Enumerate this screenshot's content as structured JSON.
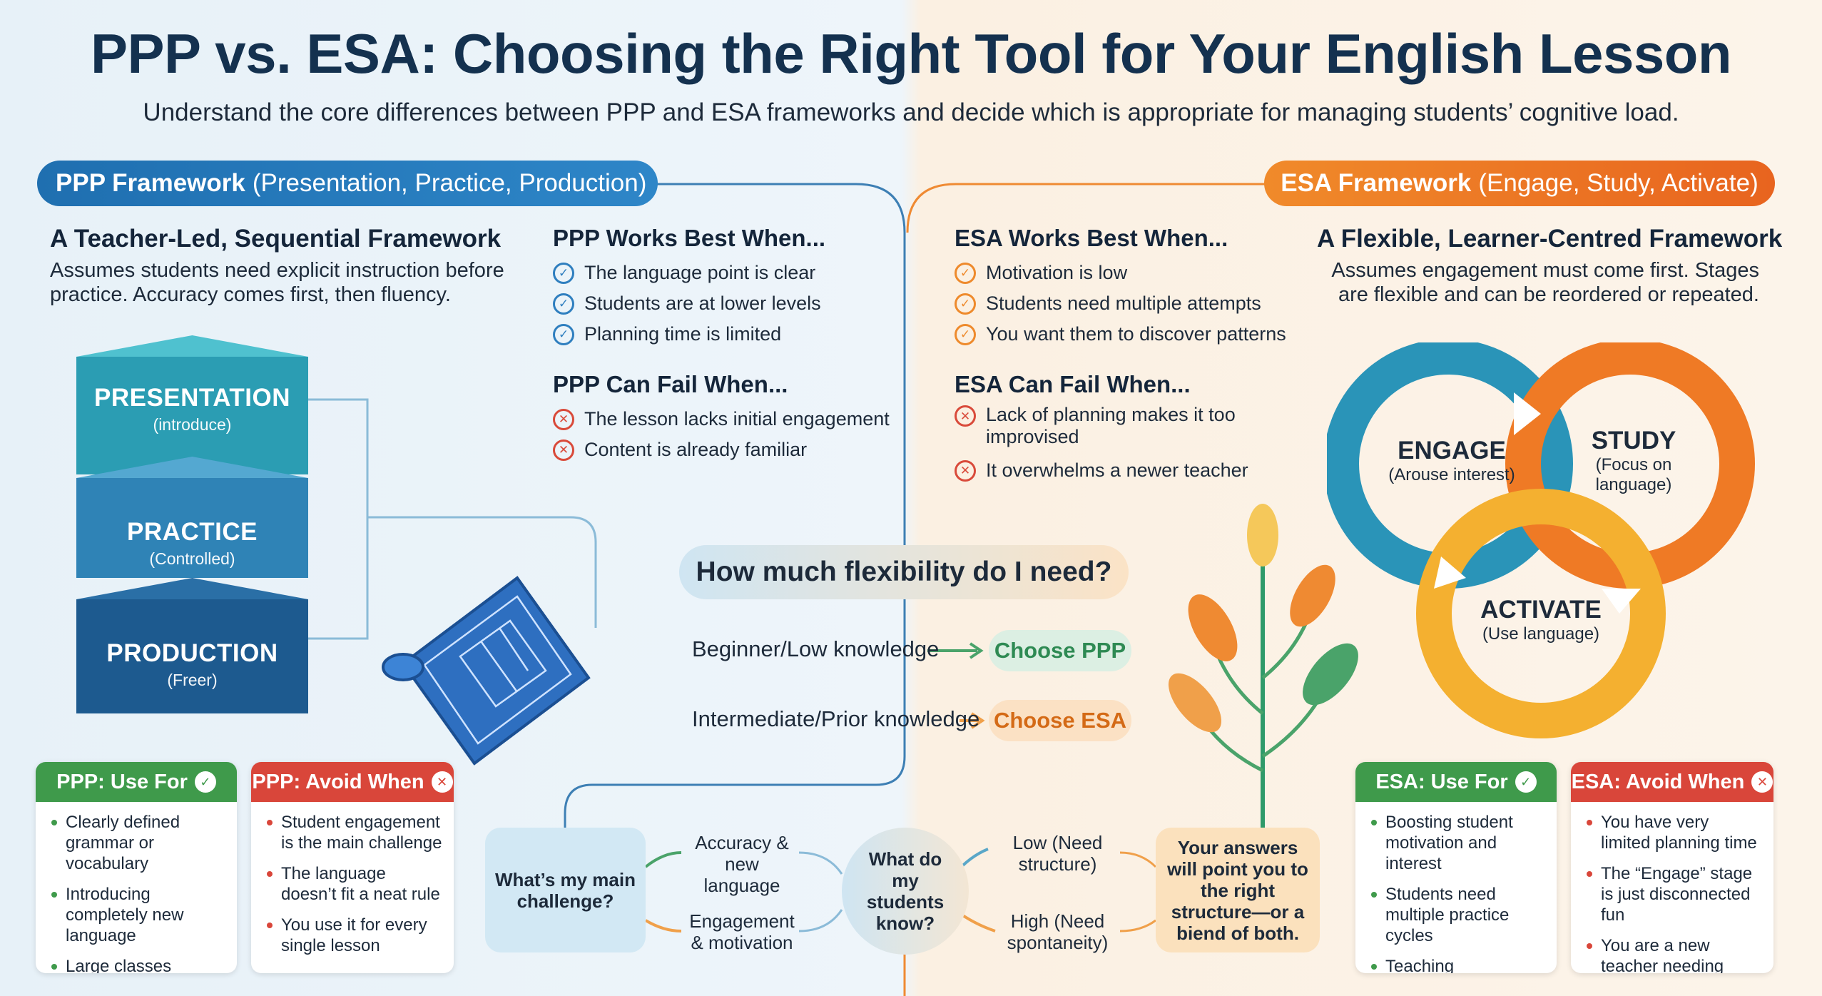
{
  "header": {
    "title": "PPP vs. ESA: Choosing the Right Tool for Your English Lesson",
    "subtitle": "Understand the core differences between PPP and ESA frameworks and decide which is appropriate for managing students’ cognitive load."
  },
  "ppp": {
    "pill_bold": "PPP Framework",
    "pill_rest": "(Presentation, Practice, Production)",
    "heading": "A Teacher-Led, Sequential Framework",
    "description": "Assumes students need explicit instruction before practice. Accuracy comes first, then fluency.",
    "stack": [
      {
        "title": "PRESENTATION",
        "sub": "(introduce)"
      },
      {
        "title": "PRACTICE",
        "sub": "(Controlled)"
      },
      {
        "title": "PRODUCTION",
        "sub": "(Freer)"
      }
    ],
    "works_title": "PPP Works Best When...",
    "works": [
      "The language point is clear",
      "Students are at lower levels",
      "Planning time is limited"
    ],
    "fail_title": "PPP Can Fail When...",
    "fail": [
      "The lesson lacks initial engagement",
      "Content is already familiar"
    ],
    "use_title": "PPP: Use For",
    "use": [
      "Clearly defined grammar or vocabulary",
      "Introducing completely new language",
      "Large classes needing controlled practice"
    ],
    "avoid_title": "PPP: Avoid When",
    "avoid": [
      "Student engagement is the main challenge",
      "The language doesn’t fit a neat rule",
      "You use it for every single lesson"
    ]
  },
  "esa": {
    "pill_bold": "ESA Framework",
    "pill_rest": "(Engage, Study, Activate)",
    "heading": "A Flexible, Learner-Centred Framework",
    "description": "Assumes engagement must come first. Stages are flexible and can be reordered or repeated.",
    "cycle": [
      {
        "title": "ENGAGE",
        "sub": "(Arouse interest)"
      },
      {
        "title": "STUDY",
        "sub": "(Focus on language)"
      },
      {
        "title": "ACTIVATE",
        "sub": "(Use language)"
      }
    ],
    "works_title": "ESA Works Best When...",
    "works": [
      "Motivation is low",
      "Students need multiple attempts",
      "You want them to discover patterns"
    ],
    "fail_title": "ESA Can Fail When...",
    "fail": [
      "Lack of planning makes it too improvised",
      "It overwhelms a newer teacher"
    ],
    "use_title": "ESA: Use For",
    "use": [
      "Boosting student motivation and interest",
      "Students need multiple practice cycles",
      "Teaching intermediate or higher levels"
    ],
    "avoid_title": "ESA: Avoid When",
    "avoid": [
      "You have very limited planning time",
      "The “Engage” stage is just disconnected fun",
      "You are a new teacher needing more structure"
    ]
  },
  "decision": {
    "question": "How much flexibility do I need?",
    "route1_label": "Beginner/Low knowledge",
    "route1_choice": "Choose PPP",
    "route2_label": "Intermediate/Prior knowledge",
    "route2_choice": "Choose ESA"
  },
  "flow": {
    "start": "What’s my main challenge?",
    "branch1": "Accuracy & new language",
    "branch2": "Engagement & motivation",
    "middle": "What do my students know?",
    "branch3": "Low (Need structure)",
    "branch4": "High (Need spontaneity)",
    "end": "Your answers will point you to the right structure—or a biend of both."
  },
  "colors": {
    "ppp_blue": "#1f6fb0",
    "esa_orange": "#ee7a25",
    "green": "#3f9a4b",
    "red": "#d9463a"
  }
}
